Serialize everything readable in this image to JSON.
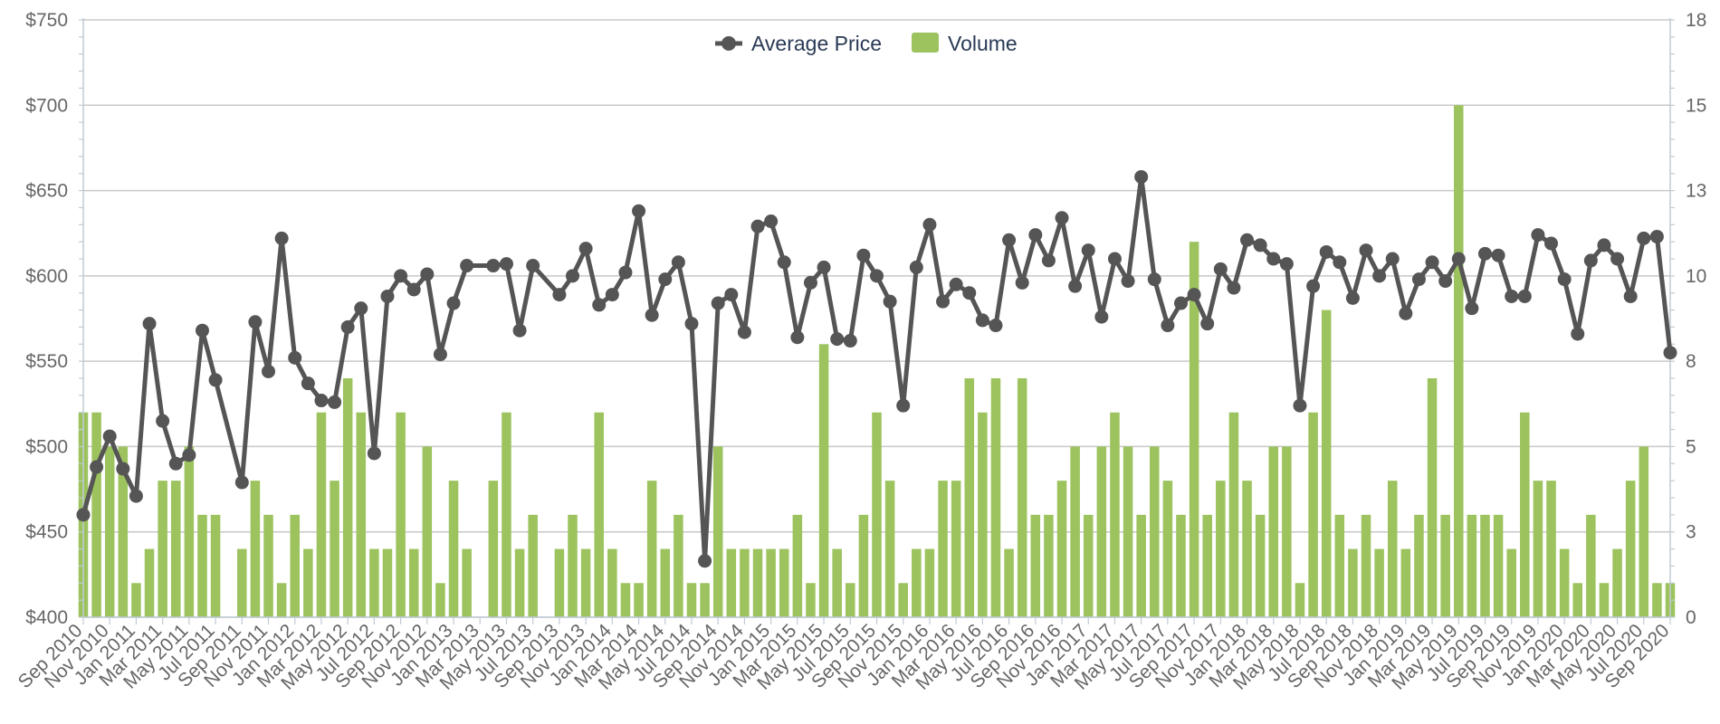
{
  "colors": {
    "price_line": "#555555",
    "volume_bar": "#9cc35e",
    "grid": "#c8c8c8",
    "axis": "#c0cad6",
    "tick_text": "#666666",
    "legend_text": "#2a3a55"
  },
  "legend": {
    "price_label": "Average Price",
    "volume_label": "Volume",
    "placement": "top-center"
  },
  "chart_data": {
    "type": "bar+line",
    "title": "",
    "xlabel": "",
    "ylabel": "",
    "grid": true,
    "y_left": {
      "min": 400,
      "max": 750,
      "ticks": [
        400,
        450,
        500,
        550,
        600,
        650,
        700,
        750
      ],
      "tick_labels": [
        "$400",
        "$450",
        "$500",
        "$550",
        "$600",
        "$650",
        "$700",
        "$750"
      ]
    },
    "y_right": {
      "min": 0,
      "max": 17.5,
      "ticks": [
        0,
        2.5,
        5,
        7.5,
        10,
        12.5,
        15,
        17.5
      ],
      "tick_labels": [
        "0",
        "3",
        "5",
        "8",
        "10",
        "13",
        "15",
        "18"
      ]
    },
    "x_labels": [
      "Sep 2010",
      "Nov 2010",
      "Jan 2011",
      "Mar 2011",
      "May 2011",
      "Jul 2011",
      "Sep 2011",
      "Nov 2011",
      "Jan 2012",
      "Mar 2012",
      "May 2012",
      "Jul 2012",
      "Sep 2012",
      "Nov 2012",
      "Jan 2013",
      "Mar 2013",
      "May 2013",
      "Jul 2013",
      "Sep 2013",
      "Nov 2013",
      "Jan 2014",
      "Mar 2014",
      "May 2014",
      "Jul 2014",
      "Sep 2014",
      "Nov 2014",
      "Jan 2015",
      "Mar 2015",
      "May 2015",
      "Jul 2015",
      "Sep 2015",
      "Nov 2015",
      "Jan 2016",
      "Mar 2016",
      "May 2016",
      "Jul 2016",
      "Sep 2016",
      "Nov 2016",
      "Jan 2017",
      "Mar 2017",
      "May 2017",
      "Jul 2017",
      "Sep 2017",
      "Nov 2017",
      "Jan 2018",
      "Mar 2018",
      "May 2018",
      "Jul 2018",
      "Sep 2018",
      "Nov 2018",
      "Jan 2019",
      "Mar 2019",
      "May 2019",
      "Jul 2019",
      "Sep 2019",
      "Nov 2019",
      "Jan 2020",
      "Mar 2020",
      "May 2020",
      "Jul 2020",
      "Sep 2020"
    ],
    "series": [
      {
        "name": "Average Price",
        "type": "line",
        "axis": "left",
        "values": [
          460,
          488,
          506,
          487,
          471,
          572,
          515,
          490,
          495,
          568,
          539,
          null,
          479,
          573,
          544,
          622,
          552,
          537,
          527,
          526,
          570,
          581,
          496,
          588,
          600,
          592,
          601,
          554,
          584,
          606,
          null,
          606,
          607,
          568,
          606,
          null,
          589,
          600,
          616,
          583,
          589,
          602,
          638,
          577,
          598,
          608,
          572,
          433,
          584,
          589,
          567,
          629,
          632,
          608,
          564,
          596,
          605,
          563,
          562,
          612,
          600,
          585,
          524,
          605,
          630,
          585,
          595,
          590,
          574,
          571,
          621,
          596,
          624,
          609,
          634,
          594,
          615,
          576,
          610,
          597,
          658,
          598,
          571,
          584,
          589,
          572,
          604,
          593,
          621,
          618,
          610,
          607,
          524,
          594,
          614,
          608,
          587,
          615,
          600,
          610,
          578,
          598,
          608,
          597,
          610,
          581,
          613,
          612,
          588,
          588,
          624,
          619,
          598,
          566,
          609,
          618,
          610,
          588,
          622,
          623,
          555
        ]
      },
      {
        "name": "Volume",
        "type": "bar",
        "axis": "right",
        "values": [
          6,
          6,
          5,
          5,
          1,
          2,
          4,
          4,
          5,
          3,
          3,
          0,
          2,
          4,
          3,
          1,
          3,
          2,
          6,
          4,
          7,
          6,
          2,
          2,
          6,
          2,
          5,
          1,
          4,
          2,
          0,
          4,
          6,
          2,
          3,
          0,
          2,
          3,
          2,
          6,
          2,
          1,
          1,
          4,
          2,
          3,
          1,
          1,
          5,
          2,
          2,
          2,
          2,
          2,
          3,
          1,
          8,
          2,
          1,
          3,
          6,
          4,
          1,
          2,
          2,
          4,
          4,
          7,
          6,
          7,
          2,
          7,
          3,
          3,
          4,
          5,
          3,
          5,
          6,
          5,
          3,
          5,
          4,
          3,
          11,
          3,
          4,
          6,
          4,
          3,
          5,
          5,
          1,
          6,
          9,
          3,
          2,
          3,
          2,
          4,
          2,
          3,
          7,
          3,
          15,
          3,
          3,
          3,
          2,
          6,
          4,
          4,
          2,
          1,
          3,
          1,
          2,
          4,
          5,
          1,
          1
        ]
      }
    ]
  }
}
